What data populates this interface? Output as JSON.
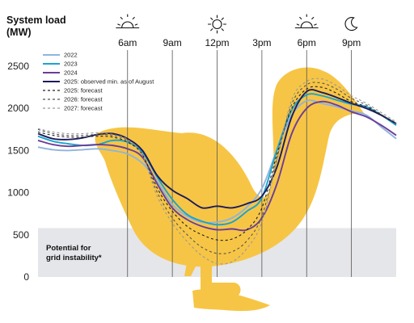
{
  "chart_data": {
    "type": "line",
    "ylabel_line1": "System load",
    "ylabel_line2": "(MW)",
    "ylim": [
      0,
      2500
    ],
    "yticks": [
      0,
      500,
      1000,
      1500,
      2000,
      2500
    ],
    "xlim": [
      0,
      24
    ],
    "xticks": [
      {
        "hour": 6,
        "label": "6am",
        "icon": "sunrise-icon"
      },
      {
        "hour": 9,
        "label": "9am",
        "icon": ""
      },
      {
        "hour": 12,
        "label": "12pm",
        "icon": "sun-icon"
      },
      {
        "hour": 15,
        "label": "3pm",
        "icon": ""
      },
      {
        "hour": 18,
        "label": "6pm",
        "icon": "sunset-icon"
      },
      {
        "hour": 21,
        "label": "9pm",
        "icon": "moon-icon"
      }
    ],
    "band": {
      "from": 0,
      "to": 580,
      "label_line1": "Potential for",
      "label_line2": "grid instability*"
    },
    "background": "duck-silhouette",
    "legend_position": "top-left",
    "colors": {
      "band": "#e5e6ea",
      "duck": "#f7c545",
      "gridline": "#555555"
    },
    "series": [
      {
        "name": "2022",
        "color": "#8fb4dd",
        "dash": "solid",
        "x": [
          0,
          1,
          2,
          3,
          4,
          5,
          6,
          7,
          8,
          9,
          10,
          11,
          12,
          13,
          14,
          15,
          16,
          17,
          18,
          19,
          20,
          21,
          22,
          23,
          24
        ],
        "y": [
          1540,
          1510,
          1500,
          1510,
          1520,
          1500,
          1460,
          1350,
          1130,
          860,
          720,
          650,
          650,
          700,
          830,
          1050,
          1500,
          1920,
          2090,
          2060,
          2020,
          1970,
          1920,
          1780,
          1640
        ]
      },
      {
        "name": "2023",
        "color": "#1ba4cc",
        "dash": "solid",
        "x": [
          0,
          1,
          2,
          3,
          4,
          5,
          6,
          7,
          8,
          9,
          10,
          11,
          12,
          13,
          14,
          15,
          16,
          17,
          18,
          19,
          20,
          21,
          22,
          23,
          24
        ],
        "y": [
          1670,
          1610,
          1580,
          1560,
          1570,
          1620,
          1600,
          1480,
          1180,
          920,
          740,
          660,
          620,
          650,
          780,
          940,
          1500,
          1980,
          2160,
          2150,
          2100,
          2050,
          2020,
          1920,
          1800
        ]
      },
      {
        "name": "2024",
        "color": "#6b3d98",
        "dash": "solid",
        "x": [
          0,
          1,
          2,
          3,
          4,
          5,
          6,
          7,
          8,
          9,
          10,
          11,
          12,
          13,
          14,
          15,
          16,
          17,
          18,
          19,
          20,
          21,
          22,
          23,
          24
        ],
        "y": [
          1620,
          1570,
          1550,
          1560,
          1570,
          1560,
          1520,
          1420,
          1100,
          820,
          680,
          600,
          560,
          570,
          560,
          700,
          1100,
          1700,
          2000,
          2080,
          2040,
          1960,
          1900,
          1800,
          1680
        ]
      },
      {
        "name": "2025: observed min. as of August",
        "color": "#1d1b5c",
        "dash": "solid",
        "x": [
          0,
          1,
          2,
          3,
          4,
          5,
          6,
          7,
          8,
          9,
          10,
          11,
          12,
          13,
          14,
          15,
          16,
          17,
          18,
          19,
          20,
          21,
          22,
          23,
          24
        ],
        "y": [
          1700,
          1640,
          1630,
          1650,
          1690,
          1700,
          1640,
          1500,
          1200,
          1030,
          930,
          820,
          840,
          820,
          870,
          960,
          1300,
          1900,
          2200,
          2190,
          2130,
          2060,
          2000,
          1920,
          1820
        ]
      },
      {
        "name": "2025: forecast",
        "color": "#222222",
        "dash": "3,3",
        "x": [
          0,
          1,
          2,
          3,
          4,
          5,
          6,
          7,
          8,
          9,
          10,
          11,
          12,
          13,
          14,
          15,
          16,
          17,
          18,
          19,
          20,
          21,
          22,
          23,
          24
        ],
        "y": [
          1720,
          1680,
          1660,
          1660,
          1670,
          1660,
          1600,
          1450,
          1050,
          780,
          600,
          500,
          440,
          450,
          560,
          820,
          1450,
          2000,
          2230,
          2250,
          2180,
          2080,
          2020,
          1920,
          1820
        ]
      },
      {
        "name": "2026: forecast",
        "color": "#555555",
        "dash": "3,3",
        "x": [
          0,
          1,
          2,
          3,
          4,
          5,
          6,
          7,
          8,
          9,
          10,
          11,
          12,
          13,
          14,
          15,
          16,
          17,
          18,
          19,
          20,
          21,
          22,
          23,
          24
        ],
        "y": [
          1750,
          1700,
          1680,
          1680,
          1690,
          1680,
          1620,
          1450,
          1000,
          700,
          500,
          350,
          280,
          300,
          430,
          720,
          1400,
          2050,
          2280,
          2300,
          2230,
          2120,
          2040,
          1930,
          1820
        ]
      },
      {
        "name": "2027: forecast",
        "color": "#999999",
        "dash": "3,3",
        "x": [
          0,
          1,
          2,
          3,
          4,
          5,
          6,
          7,
          8,
          9,
          10,
          11,
          12,
          13,
          14,
          15,
          16,
          17,
          18,
          19,
          20,
          21,
          22,
          23,
          24
        ],
        "y": [
          1760,
          1720,
          1700,
          1700,
          1710,
          1690,
          1630,
          1440,
          950,
          640,
          420,
          250,
          160,
          180,
          340,
          650,
          1380,
          2100,
          2320,
          2350,
          2270,
          2150,
          2060,
          1950,
          1840
        ]
      }
    ]
  }
}
